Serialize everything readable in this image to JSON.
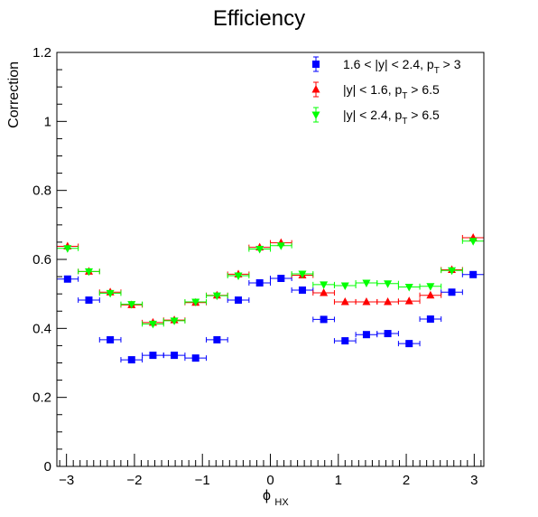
{
  "chart_data": {
    "type": "scatter",
    "title": "Efficiency",
    "xlabel_main": "ϕ",
    "xlabel_sub": "HX",
    "ylabel": "Correction",
    "xlim": [
      -3.14159,
      3.14159
    ],
    "ylim": [
      0,
      1.2
    ],
    "xticks": [
      -3,
      -2,
      -1,
      0,
      1,
      2,
      3
    ],
    "xtick_labels": [
      "−3",
      "−2",
      "−1",
      "0",
      "1",
      "2",
      "3"
    ],
    "yticks": [
      0,
      0.2,
      0.4,
      0.6,
      0.8,
      1,
      1.2
    ],
    "ytick_labels": [
      "0",
      "0.2",
      "0.4",
      "0.6",
      "0.8",
      "1",
      "1.2"
    ],
    "grid": false,
    "legend_position": "top-right",
    "bin_edges": [
      -3.14159,
      -2.82743,
      -2.51327,
      -2.19911,
      -1.88496,
      -1.5708,
      -1.25664,
      -0.94248,
      -0.62832,
      -0.31416,
      0,
      0.31416,
      0.62832,
      0.94248,
      1.25664,
      1.5708,
      1.88496,
      2.19911,
      2.51327,
      2.82743,
      3.14159
    ],
    "x": [
      -2.98451,
      -2.67035,
      -2.35619,
      -2.04204,
      -1.72788,
      -1.41372,
      -1.09956,
      -0.7854,
      -0.47124,
      -0.15708,
      0.15708,
      0.47124,
      0.7854,
      1.09956,
      1.41372,
      1.72788,
      2.04204,
      2.35619,
      2.67035,
      2.98451
    ],
    "series": [
      {
        "legend_prefix": "1.6 < |y| < 2.4, p",
        "legend_sub": "T",
        "legend_suffix": " > 3",
        "color": "#0000ff",
        "marker": "square",
        "values": [
          0.543,
          0.482,
          0.367,
          0.309,
          0.322,
          0.322,
          0.314,
          0.367,
          0.482,
          0.532,
          0.545,
          0.511,
          0.426,
          0.364,
          0.382,
          0.385,
          0.356,
          0.427,
          0.505,
          0.556
        ]
      },
      {
        "legend_prefix": "|y| < 1.6, p",
        "legend_sub": "T",
        "legend_suffix": " > 6.5",
        "color": "#ff0000",
        "marker": "triangle-up",
        "values": [
          0.638,
          0.565,
          0.505,
          0.468,
          0.417,
          0.424,
          0.475,
          0.496,
          0.557,
          0.635,
          0.648,
          0.554,
          0.503,
          0.477,
          0.477,
          0.477,
          0.479,
          0.496,
          0.57,
          0.663
        ]
      },
      {
        "legend_prefix": "|y| < 2.4, p",
        "legend_sub": "T",
        "legend_suffix": " > 6.5",
        "color": "#00ff00",
        "marker": "triangle-down",
        "values": [
          0.632,
          0.565,
          0.502,
          0.47,
          0.413,
          0.422,
          0.477,
          0.495,
          0.553,
          0.63,
          0.64,
          0.558,
          0.527,
          0.524,
          0.532,
          0.53,
          0.52,
          0.522,
          0.568,
          0.653
        ]
      }
    ]
  }
}
